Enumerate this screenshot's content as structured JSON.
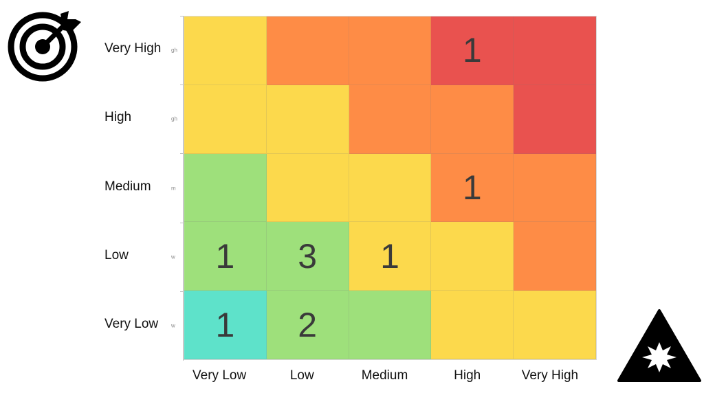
{
  "chart_data": {
    "type": "heatmap",
    "x_categories": [
      "Very Low",
      "Low",
      "Medium",
      "High",
      "Very High"
    ],
    "y_categories": [
      "Very High",
      "High",
      "Medium",
      "Low",
      "Very Low"
    ],
    "y_faint_labels": [
      "gh",
      "gh",
      "m",
      "w",
      "w"
    ],
    "cell_colors": [
      [
        "#fcd94c",
        "#fe8c46",
        "#fe8c46",
        "#e9524f",
        "#e9524f"
      ],
      [
        "#fcd94c",
        "#fcd94c",
        "#fe8c46",
        "#fe8c46",
        "#e9524f"
      ],
      [
        "#9ee07b",
        "#fcd94c",
        "#fcd94c",
        "#fe8c46",
        "#fe8c46"
      ],
      [
        "#9ee07b",
        "#9ee07b",
        "#fcd94c",
        "#fcd94c",
        "#fe8c46"
      ],
      [
        "#5ee2ca",
        "#9ee07b",
        "#9ee07b",
        "#fcd94c",
        "#fcd94c"
      ]
    ],
    "values": [
      [
        "",
        "",
        "",
        "1",
        ""
      ],
      [
        "",
        "",
        "",
        "",
        ""
      ],
      [
        "",
        "",
        "",
        "1",
        ""
      ],
      [
        "1",
        "3",
        "1",
        "",
        ""
      ],
      [
        "1",
        "2",
        "",
        "",
        ""
      ]
    ]
  },
  "icons": {
    "top_left": "target-icon",
    "bottom_right": "hazard-explosion-icon"
  }
}
